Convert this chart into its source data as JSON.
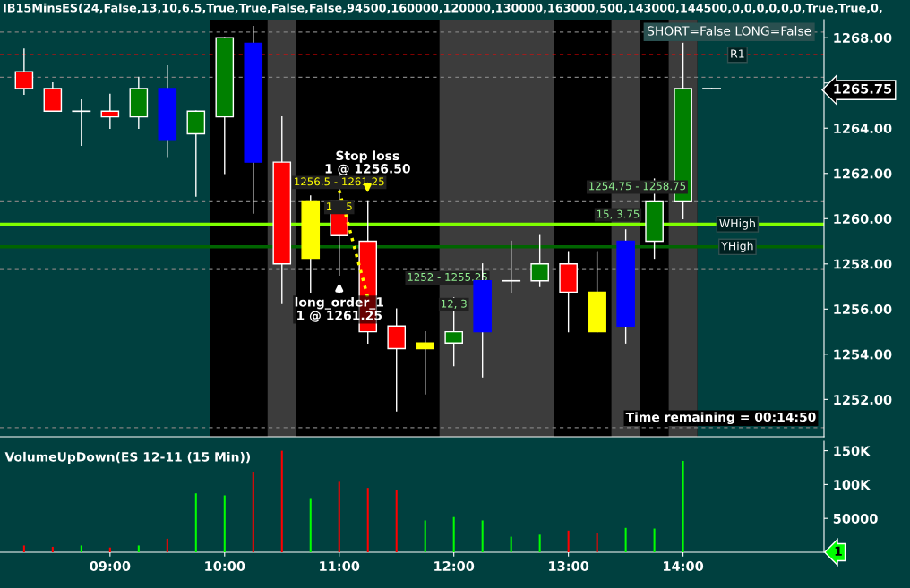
{
  "chart_data": [
    {
      "type": "candlestick",
      "title": "IB15MinsES(24,False,13,10,6.5,True,True,False,False,94500,160000,120000,130000,163000,500,143000,144500,0,0,0,0,0,0,True,True,0,",
      "x": [
        8.25,
        8.5,
        8.75,
        9.0,
        9.25,
        9.5,
        9.75,
        10.0,
        10.25,
        10.5,
        10.75,
        11.0,
        11.25,
        11.5,
        11.75,
        12.0,
        12.25,
        12.5,
        12.75,
        13.0,
        13.25,
        13.5,
        13.75,
        14.0,
        14.25
      ],
      "ohlc": [
        [
          1266.5,
          1267.5,
          1265.5,
          1265.75
        ],
        [
          1265.75,
          1266.0,
          1264.75,
          1264.75
        ],
        [
          1264.75,
          1265.25,
          1263.25,
          1264.75
        ],
        [
          1264.75,
          1265.5,
          1264.0,
          1264.5
        ],
        [
          1264.5,
          1266.25,
          1264.0,
          1265.75
        ],
        [
          1265.75,
          1266.75,
          1262.75,
          1263.5
        ],
        [
          1263.75,
          1264.75,
          1261.0,
          1264.75
        ],
        [
          1264.5,
          1268.0,
          1262.0,
          1268.0
        ],
        [
          1267.75,
          1268.5,
          1260.25,
          1262.5
        ],
        [
          1262.5,
          1264.5,
          1256.25,
          1258.0
        ],
        [
          1258.25,
          1261.0,
          1256.75,
          1260.75
        ],
        [
          1260.75,
          1262.0,
          1257.5,
          1259.25
        ],
        [
          1259.0,
          1260.75,
          1254.5,
          1255.0
        ],
        [
          1255.25,
          1256.0,
          1251.5,
          1254.25
        ],
        [
          1254.25,
          1255.0,
          1252.25,
          1254.5
        ],
        [
          1254.5,
          1256.5,
          1253.5,
          1255.0
        ],
        [
          1255.0,
          1258.0,
          1253.0,
          1257.25
        ],
        [
          1257.25,
          1259.0,
          1256.75,
          1257.25
        ],
        [
          1257.25,
          1259.25,
          1257.0,
          1258.0
        ],
        [
          1258.0,
          1258.5,
          1255.0,
          1256.75
        ],
        [
          1256.75,
          1258.5,
          1255.0,
          1255.0
        ],
        [
          1255.25,
          1259.5,
          1254.5,
          1259.0
        ],
        [
          1259.0,
          1261.75,
          1258.25,
          1260.75
        ],
        [
          1260.75,
          1267.75,
          1260.0,
          1265.75
        ],
        [
          1265.75,
          1265.75,
          1265.75,
          1265.75
        ]
      ],
      "colors": [
        "#ff0000",
        "#ff0000",
        "#ffffff",
        "#ff0000",
        "#008000",
        "#0000ff",
        "#008000",
        "#008000",
        "#0000ff",
        "#ff0000",
        "#ffff00",
        "#ff0000",
        "#ff0000",
        "#ff0000",
        "#ffff00",
        "#008000",
        "#0000ff",
        "#ffffff",
        "#008000",
        "#ff0000",
        "#ffff00",
        "#0000ff",
        "#008000",
        "#008000",
        "#ffffff"
      ],
      "series": [
        {
          "type": "line",
          "x": [
            11.0,
            11.25
          ],
          "values": [
            1261.25,
            1256.5
          ],
          "color": "#ffff00",
          "line_style": "dotted"
        }
      ],
      "xlim": [
        8.04,
        15.23
      ],
      "ylim": [
        1250.35,
        1268.8
      ],
      "yticks": [
        {
          "value": 1252,
          "label": "1252.00"
        },
        {
          "value": 1254,
          "label": "1254.00"
        },
        {
          "value": 1256,
          "label": "1256.00"
        },
        {
          "value": 1258,
          "label": "1258.00"
        },
        {
          "value": 1260,
          "label": "1260.00"
        },
        {
          "value": 1262,
          "label": "1262.00"
        },
        {
          "value": 1264,
          "label": "1264.00"
        },
        {
          "value": 1265.75,
          "label": "1265.75"
        },
        {
          "value": 1266,
          "label": null
        },
        {
          "value": 1268,
          "label": "1268.00"
        }
      ],
      "tick_labels": "y",
      "grid": false,
      "bands": [
        {
          "axis": "x",
          "from": 9.875,
          "to": 14.125,
          "color": "#000000"
        },
        {
          "axis": "x",
          "from": 10.375,
          "to": 10.625,
          "color": "#3c3c3c"
        },
        {
          "axis": "x",
          "from": 11.875,
          "to": 12.875,
          "color": "#3c3c3c"
        },
        {
          "axis": "x",
          "from": 13.375,
          "to": 13.625,
          "color": "#3c3c3c"
        },
        {
          "axis": "x",
          "from": 13.875,
          "to": 14.125,
          "color": "#3c3c3c"
        }
      ],
      "ref_lines": [
        {
          "axis": "y",
          "value": 1268.25,
          "color": "#808080",
          "line_style": "dashed"
        },
        {
          "axis": "y",
          "value": 1266.25,
          "color": "#808080",
          "line_style": "dashed"
        },
        {
          "axis": "y",
          "value": 1260.75,
          "color": "#808080",
          "line_style": "dashed"
        },
        {
          "axis": "y",
          "value": 1257.75,
          "color": "#808080",
          "line_style": "dashed"
        },
        {
          "axis": "y",
          "value": 1250.75,
          "color": "#808080",
          "line_style": "dashed"
        },
        {
          "axis": "y",
          "value": 1267.25,
          "label": "R1",
          "color": "#ff0000",
          "line_style": "dashed"
        },
        {
          "axis": "y",
          "value": 1259.75,
          "label": "WHigh",
          "color": "#7fff00",
          "line_style": "solid"
        },
        {
          "axis": "y",
          "value": 1258.75,
          "label": "YHigh",
          "color": "#006400",
          "line_style": "solid"
        }
      ],
      "annotations": [
        "Stop loss\n1 @ 1256.50",
        "long_order_1\n1 @ 1261.25",
        {
          "text": "1256.5 - 1261.25",
          "x": 11.0,
          "y": 1261.6
        },
        {
          "text": "1    5",
          "x": 11.0,
          "y": 1260.5
        },
        "1252 - 1255.25",
        {
          "text": "12, 3",
          "x": 12.0,
          "y": 1256.2
        },
        {
          "text": "1254.75 - 1258.75",
          "x": 13.6,
          "y": 1261.4
        },
        "15, 3.75",
        "SHORT=False LONG=False",
        "Time remaining = 00:14:50"
      ]
    },
    {
      "type": "bar",
      "title": "VolumeUpDown(ES 12-11 (15 Min))",
      "x": [
        8.25,
        8.5,
        8.75,
        9.0,
        9.25,
        9.5,
        9.75,
        10.0,
        10.25,
        10.5,
        10.75,
        11.0,
        11.25,
        11.5,
        11.75,
        12.0,
        12.25,
        12.5,
        12.75,
        13.0,
        13.25,
        13.5,
        13.75,
        14.0,
        14.25
      ],
      "values": [
        10000,
        8000,
        10000,
        7000,
        10000,
        20000,
        87000,
        84000,
        119000,
        150000,
        80000,
        104000,
        95000,
        92000,
        47000,
        52000,
        47000,
        23000,
        26000,
        32000,
        28000,
        36000,
        35000,
        135000,
        1
      ],
      "colors": [
        "#ff0000",
        "#ff0000",
        "#00ff00",
        "#ff0000",
        "#00ff00",
        "#ff0000",
        "#00ff00",
        "#00ff00",
        "#ff0000",
        "#ff0000",
        "#00ff00",
        "#ff0000",
        "#ff0000",
        "#ff0000",
        "#00ff00",
        "#00ff00",
        "#00ff00",
        "#00ff00",
        "#00ff00",
        "#ff0000",
        "#ff0000",
        "#00ff00",
        "#00ff00",
        "#00ff00",
        "#00ff00"
      ],
      "xlim": [
        8.04,
        15.23
      ],
      "ylim": [
        0,
        164000
      ],
      "xticks": [
        {
          "value": 9,
          "label": "09:00"
        },
        {
          "value": 10,
          "label": "10:00"
        },
        {
          "value": 11,
          "label": "11:00"
        },
        {
          "value": 12,
          "label": "12:00"
        },
        {
          "value": 13,
          "label": "13:00"
        },
        {
          "value": 14,
          "label": "14:00"
        }
      ],
      "yticks": [
        {
          "value": 50000,
          "label": "50000"
        },
        {
          "value": 100000,
          "label": "100K"
        },
        {
          "value": 150000,
          "label": "150K"
        }
      ],
      "grid": false,
      "annotations": [
        "1"
      ]
    }
  ]
}
